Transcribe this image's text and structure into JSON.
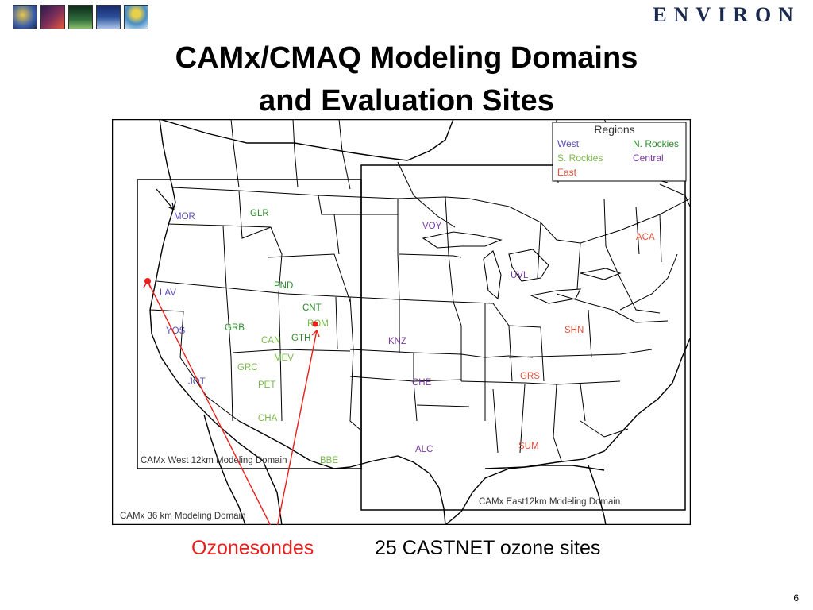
{
  "header": {
    "brand": "ENVIRON",
    "logos": [
      {
        "icon": "globe-icon",
        "color": "#3b5fa8"
      },
      {
        "icon": "dna-icon",
        "color": "#7a2d5a"
      },
      {
        "icon": "tree-icon",
        "color": "#2e6b3a"
      },
      {
        "icon": "water-icon",
        "color": "#2a4f9a"
      },
      {
        "icon": "balloon-icon",
        "color": "#4a8ec4"
      }
    ]
  },
  "slide": {
    "title_line1": "CAMx/CMAQ Modeling Domains",
    "title_line2": "and Evaluation Sites",
    "page_number": "6"
  },
  "legend": {
    "title": "Regions",
    "west": "West",
    "n_rockies": "N. Rockies",
    "s_rockies": "S. Rockies",
    "central": "Central",
    "east": "East"
  },
  "colors": {
    "west": "#5b4fb8",
    "n_rockies": "#2e8b2e",
    "s_rockies": "#7ab84a",
    "central": "#7a3aa0",
    "east": "#e8503a",
    "ozonesonde": "#e8201c"
  },
  "domains": {
    "d36": "CAMx 36 km Modeling Domain",
    "west12": "CAMx West 12km Modeling Domain",
    "east12": "CAMx East12km Modeling Domain"
  },
  "sites": {
    "mor": "MOR",
    "lav": "LAV",
    "yos": "YOS",
    "jot": "JOT",
    "glr": "GLR",
    "pnd": "PND",
    "cnt": "CNT",
    "grb": "GRB",
    "can": "CAN",
    "gth": "GTH",
    "rom": "ROM",
    "mev": "MEV",
    "grc": "GRC",
    "pet": "PET",
    "cha": "CHA",
    "bbe": "BBE",
    "voy": "VOY",
    "uvl": "UVL",
    "knz": "KNZ",
    "che": "CHE",
    "alc": "ALC",
    "aca": "ACA",
    "shn": "SHN",
    "grs": "GRS",
    "sum": "SUM"
  },
  "captions": {
    "ozonesondes": "Ozonesondes",
    "castnet": "25 CASTNET ozone sites"
  }
}
